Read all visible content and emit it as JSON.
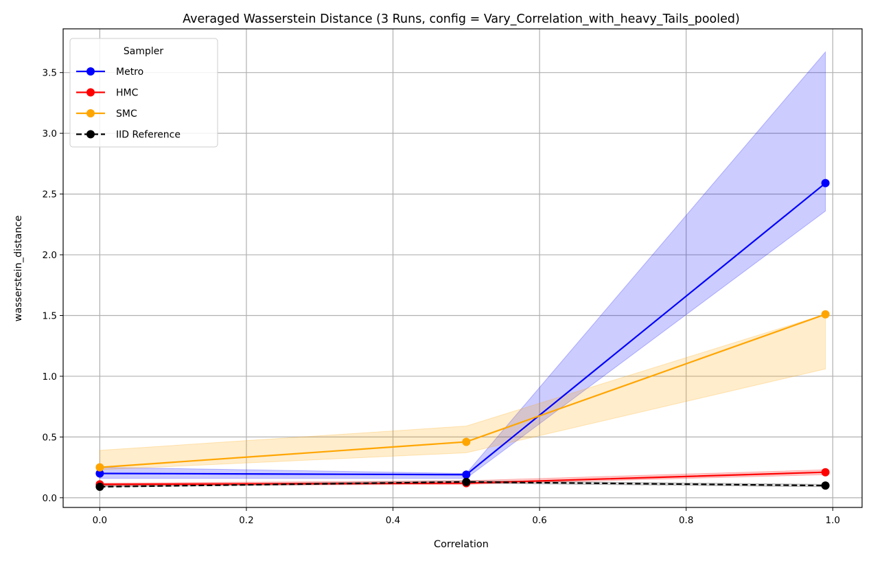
{
  "chart_data": {
    "type": "line",
    "title": "Averaged Wasserstein Distance (3 Runs, config = Vary_Correlation_with_heavy_Tails_pooled)",
    "xlabel": "Correlation",
    "ylabel": "wasserstein_distance",
    "xlim": [
      -0.05,
      1.04
    ],
    "ylim": [
      -0.08,
      3.86
    ],
    "xticks": [
      "0.0",
      "0.2",
      "0.4",
      "0.6",
      "0.8",
      "1.0"
    ],
    "xtick_values": [
      0.0,
      0.2,
      0.4,
      0.6,
      0.8,
      1.0
    ],
    "yticks": [
      "0.0",
      "0.5",
      "1.0",
      "1.5",
      "2.0",
      "2.5",
      "3.0",
      "3.5"
    ],
    "ytick_values": [
      0.0,
      0.5,
      1.0,
      1.5,
      2.0,
      2.5,
      3.0,
      3.5
    ],
    "grid": true,
    "legend_title": "Sampler",
    "legend_position": "top-left",
    "x": [
      0.0,
      0.5,
      0.99
    ],
    "series": [
      {
        "name": "Metro",
        "color": "#0000ff",
        "linestyle": "solid",
        "values": [
          0.2,
          0.19,
          2.59
        ],
        "band_lower": [
          0.16,
          0.16,
          2.36
        ],
        "band_upper": [
          0.25,
          0.2,
          3.67
        ],
        "band_color": "#0000ff"
      },
      {
        "name": "HMC",
        "color": "#ff0000",
        "linestyle": "solid",
        "values": [
          0.11,
          0.12,
          0.21
        ],
        "band_lower": [
          0.1,
          0.11,
          0.19
        ],
        "band_upper": [
          0.12,
          0.14,
          0.23
        ],
        "band_color": "#ff0000"
      },
      {
        "name": "SMC",
        "color": "#ffa500",
        "linestyle": "solid",
        "values": [
          0.25,
          0.46,
          1.51
        ],
        "band_lower": [
          0.23,
          0.37,
          1.06
        ],
        "band_upper": [
          0.39,
          0.59,
          1.51
        ],
        "band_color": "#ffa500"
      },
      {
        "name": "IID Reference",
        "color": "#000000",
        "linestyle": "dashed",
        "values": [
          0.09,
          0.13,
          0.1
        ],
        "band_lower": [
          0.09,
          0.12,
          0.09
        ],
        "band_upper": [
          0.1,
          0.14,
          0.11
        ],
        "band_color": "#000000"
      }
    ]
  }
}
